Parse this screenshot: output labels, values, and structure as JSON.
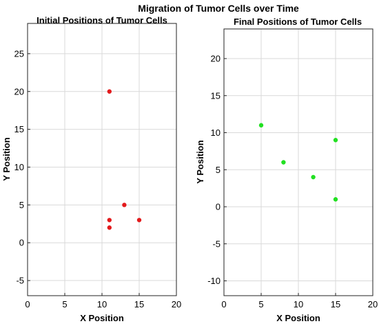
{
  "figure_title": "Migration of Tumor Cells over Time",
  "chart_data": [
    {
      "type": "scatter",
      "title": "Initial Positions of Tumor Cells",
      "xlabel": "X Position",
      "ylabel": "Y Position",
      "xlim": [
        0,
        20
      ],
      "ylim": [
        -7,
        29
      ],
      "xticks": [
        0,
        5,
        10,
        15,
        20
      ],
      "yticks": [
        -5,
        0,
        5,
        10,
        15,
        20,
        25
      ],
      "grid": true,
      "marker_color": "#e31a1c",
      "points": [
        {
          "x": 11,
          "y": 20
        },
        {
          "x": 13,
          "y": 5
        },
        {
          "x": 11,
          "y": 3
        },
        {
          "x": 15,
          "y": 3
        },
        {
          "x": 11,
          "y": 2
        }
      ]
    },
    {
      "type": "scatter",
      "title": "Final Positions of Tumor Cells",
      "xlabel": "X Position",
      "ylabel": "Y Position",
      "xlim": [
        0,
        20
      ],
      "ylim": [
        -12,
        24
      ],
      "xticks": [
        0,
        5,
        10,
        15,
        20
      ],
      "yticks": [
        -10,
        -5,
        0,
        5,
        10,
        15,
        20
      ],
      "grid": true,
      "marker_color": "#22e022",
      "points": [
        {
          "x": 5,
          "y": 11
        },
        {
          "x": 8,
          "y": 6
        },
        {
          "x": 12,
          "y": 4
        },
        {
          "x": 15,
          "y": 9
        },
        {
          "x": 15,
          "y": 1
        }
      ]
    }
  ]
}
